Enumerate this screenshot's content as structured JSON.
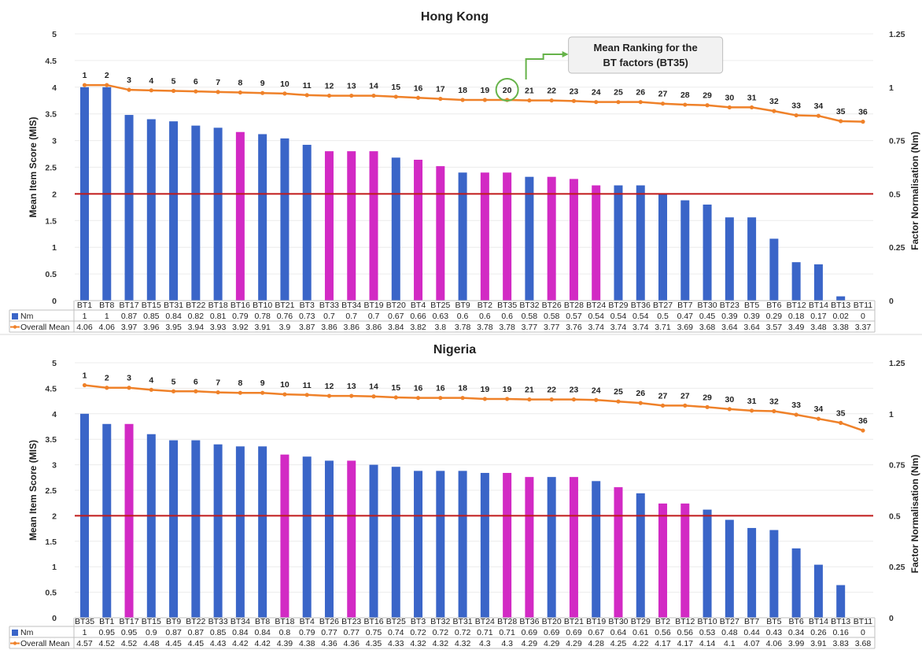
{
  "legend": {
    "nm_label": "Nm",
    "overall_label": "Overall Mean"
  },
  "annotation": {
    "line1": "Mean Ranking for the",
    "line2": "BT factors (BT35)"
  },
  "colors": {
    "blue": "#3a65c8",
    "magenta": "#d22ac4",
    "orange": "#ef8129",
    "threshold": "#c01a1a",
    "circle": "#66b34a"
  },
  "chart_data": [
    {
      "type": "bar",
      "title": "Hong Kong",
      "ylabel": "Mean Item Score (MIS)",
      "y2label": "Factor Normalisation (Nm)",
      "ylim": [
        0,
        5
      ],
      "y2lim": [
        0,
        1.25
      ],
      "yticks": [
        "0",
        "0.5",
        "1",
        "1.5",
        "2",
        "2.5",
        "3",
        "3.5",
        "4",
        "4.5",
        "5"
      ],
      "y2ticks": [
        "0",
        "0.25",
        "0.5",
        "0.75",
        "1",
        "1.25"
      ],
      "threshold": 2,
      "categories": [
        "BT1",
        "BT8",
        "BT17",
        "BT15",
        "BT31",
        "BT22",
        "BT18",
        "BT16",
        "BT10",
        "BT21",
        "BT3",
        "BT33",
        "BT34",
        "BT19",
        "BT20",
        "BT4",
        "BT25",
        "BT9",
        "BT2",
        "BT35",
        "BT32",
        "BT26",
        "BT28",
        "BT24",
        "BT29",
        "BT36",
        "BT27",
        "BT7",
        "BT30",
        "BT23",
        "BT5",
        "BT6",
        "BT12",
        "BT14",
        "BT13",
        "BT11"
      ],
      "bar_colors": [
        "blue",
        "blue",
        "blue",
        "blue",
        "blue",
        "blue",
        "blue",
        "magenta",
        "blue",
        "blue",
        "blue",
        "magenta",
        "magenta",
        "magenta",
        "blue",
        "magenta",
        "magenta",
        "blue",
        "magenta",
        "magenta",
        "blue",
        "magenta",
        "magenta",
        "magenta",
        "blue",
        "blue",
        "blue",
        "blue",
        "blue",
        "blue",
        "blue",
        "blue",
        "blue",
        "blue",
        "blue",
        "blue"
      ],
      "series": [
        {
          "name": "Nm",
          "axis": "y",
          "values": [
            1,
            1,
            0.87,
            0.85,
            0.84,
            0.82,
            0.81,
            0.79,
            0.78,
            0.76,
            0.73,
            0.7,
            0.7,
            0.7,
            0.67,
            0.66,
            0.63,
            0.6,
            0.6,
            0.6,
            0.58,
            0.58,
            0.57,
            0.54,
            0.54,
            0.54,
            0.5,
            0.47,
            0.45,
            0.39,
            0.39,
            0.29,
            0.18,
            0.17,
            0.02,
            0
          ],
          "labels": [
            "1",
            "1",
            "0.87",
            "0.85",
            "0.84",
            "0.82",
            "0.81",
            "0.79",
            "0.78",
            "0.76",
            "0.73",
            "0.7",
            "0.7",
            "0.7",
            "0.67",
            "0.66",
            "0.63",
            "0.6",
            "0.6",
            "0.6",
            "0.58",
            "0.58",
            "0.57",
            "0.54",
            "0.54",
            "0.54",
            "0.5",
            "0.47",
            "0.45",
            "0.39",
            "0.39",
            "0.29",
            "0.18",
            "0.17",
            "0.02",
            "0"
          ]
        },
        {
          "name": "Overall Mean",
          "axis": "y2",
          "values": [
            4.06,
            4.06,
            3.97,
            3.96,
            3.95,
            3.94,
            3.93,
            3.92,
            3.91,
            3.9,
            3.87,
            3.86,
            3.86,
            3.86,
            3.84,
            3.82,
            3.8,
            3.78,
            3.78,
            3.78,
            3.77,
            3.77,
            3.76,
            3.74,
            3.74,
            3.74,
            3.71,
            3.69,
            3.68,
            3.64,
            3.64,
            3.57,
            3.49,
            3.48,
            3.38,
            3.37
          ],
          "labels": [
            "4.06",
            "4.06",
            "3.97",
            "3.96",
            "3.95",
            "3.94",
            "3.93",
            "3.92",
            "3.91",
            "3.9",
            "3.87",
            "3.86",
            "3.86",
            "3.86",
            "3.84",
            "3.82",
            "3.8",
            "3.78",
            "3.78",
            "3.78",
            "3.77",
            "3.77",
            "3.76",
            "3.74",
            "3.74",
            "3.74",
            "3.71",
            "3.69",
            "3.68",
            "3.64",
            "3.64",
            "3.57",
            "3.49",
            "3.48",
            "3.38",
            "3.37"
          ]
        }
      ],
      "ranks": [
        "1",
        "2",
        "3",
        "4",
        "5",
        "6",
        "7",
        "8",
        "9",
        "10",
        "11",
        "12",
        "13",
        "14",
        "15",
        "16",
        "17",
        "18",
        "19",
        "20",
        "21",
        "22",
        "23",
        "24",
        "25",
        "26",
        "27",
        "28",
        "29",
        "30",
        "31",
        "32",
        "33",
        "34",
        "35",
        "36"
      ],
      "highlight_index": 19
    },
    {
      "type": "bar",
      "title": "Nigeria",
      "ylabel": "Mean Item Score (MIS)",
      "y2label": "Factor Normalisation (Nm)",
      "ylim": [
        0,
        5
      ],
      "y2lim": [
        0,
        1.25
      ],
      "yticks": [
        "0",
        "0.5",
        "1",
        "1.5",
        "2",
        "2.5",
        "3",
        "3.5",
        "4",
        "4.5",
        "5"
      ],
      "y2ticks": [
        "0",
        "0.25",
        "0.5",
        "0.75",
        "1",
        "1.25"
      ],
      "threshold": 2,
      "categories": [
        "BT35",
        "BT1",
        "BT17",
        "BT15",
        "BT9",
        "BT22",
        "BT33",
        "BT34",
        "BT8",
        "BT18",
        "BT4",
        "BT26",
        "BT23",
        "BT16",
        "BT25",
        "BT3",
        "BT32",
        "BT31",
        "BT24",
        "BT28",
        "BT36",
        "BT20",
        "BT21",
        "BT19",
        "BT30",
        "BT29",
        "BT2",
        "BT12",
        "BT10",
        "BT27",
        "BT7",
        "BT5",
        "BT6",
        "BT14",
        "BT13",
        "BT11"
      ],
      "bar_colors": [
        "blue",
        "blue",
        "magenta",
        "blue",
        "blue",
        "blue",
        "blue",
        "blue",
        "blue",
        "magenta",
        "blue",
        "blue",
        "magenta",
        "blue",
        "blue",
        "blue",
        "blue",
        "blue",
        "blue",
        "magenta",
        "magenta",
        "blue",
        "magenta",
        "blue",
        "magenta",
        "blue",
        "magenta",
        "magenta",
        "blue",
        "blue",
        "blue",
        "blue",
        "blue",
        "blue",
        "blue",
        "blue"
      ],
      "series": [
        {
          "name": "Nm",
          "axis": "y",
          "values": [
            1,
            0.95,
            0.95,
            0.9,
            0.87,
            0.87,
            0.85,
            0.84,
            0.84,
            0.8,
            0.79,
            0.77,
            0.77,
            0.75,
            0.74,
            0.72,
            0.72,
            0.72,
            0.71,
            0.71,
            0.69,
            0.69,
            0.69,
            0.67,
            0.64,
            0.61,
            0.56,
            0.56,
            0.53,
            0.48,
            0.44,
            0.43,
            0.34,
            0.26,
            0.16,
            0
          ],
          "labels": [
            "1",
            "0.95",
            "0.95",
            "0.9",
            "0.87",
            "0.87",
            "0.85",
            "0.84",
            "0.84",
            "0.8",
            "0.79",
            "0.77",
            "0.77",
            "0.75",
            "0.74",
            "0.72",
            "0.72",
            "0.72",
            "0.71",
            "0.71",
            "0.69",
            "0.69",
            "0.69",
            "0.67",
            "0.64",
            "0.61",
            "0.56",
            "0.56",
            "0.53",
            "0.48",
            "0.44",
            "0.43",
            "0.34",
            "0.26",
            "0.16",
            "0"
          ]
        },
        {
          "name": "Overall Mean",
          "axis": "y2",
          "values": [
            4.57,
            4.52,
            4.52,
            4.48,
            4.45,
            4.45,
            4.43,
            4.42,
            4.42,
            4.39,
            4.38,
            4.36,
            4.36,
            4.35,
            4.33,
            4.32,
            4.32,
            4.32,
            4.3,
            4.3,
            4.29,
            4.29,
            4.29,
            4.28,
            4.25,
            4.22,
            4.17,
            4.17,
            4.14,
            4.1,
            4.07,
            4.06,
            3.99,
            3.91,
            3.83,
            3.68
          ],
          "labels": [
            "4.57",
            "4.52",
            "4.52",
            "4.48",
            "4.45",
            "4.45",
            "4.43",
            "4.42",
            "4.42",
            "4.39",
            "4.38",
            "4.36",
            "4.36",
            "4.35",
            "4.33",
            "4.32",
            "4.32",
            "4.32",
            "4.3",
            "4.3",
            "4.29",
            "4.29",
            "4.29",
            "4.28",
            "4.25",
            "4.22",
            "4.17",
            "4.17",
            "4.14",
            "4.1",
            "4.07",
            "4.06",
            "3.99",
            "3.91",
            "3.83",
            "3.68"
          ]
        }
      ],
      "ranks": [
        "1",
        "2",
        "3",
        "4",
        "5",
        "6",
        "7",
        "8",
        "9",
        "10",
        "11",
        "12",
        "13",
        "14",
        "15",
        "16",
        "16",
        "18",
        "19",
        "19",
        "21",
        "22",
        "23",
        "24",
        "25",
        "26",
        "27",
        "27",
        "29",
        "30",
        "31",
        "32",
        "33",
        "34",
        "35",
        "36"
      ],
      "highlight_index": -1
    }
  ]
}
